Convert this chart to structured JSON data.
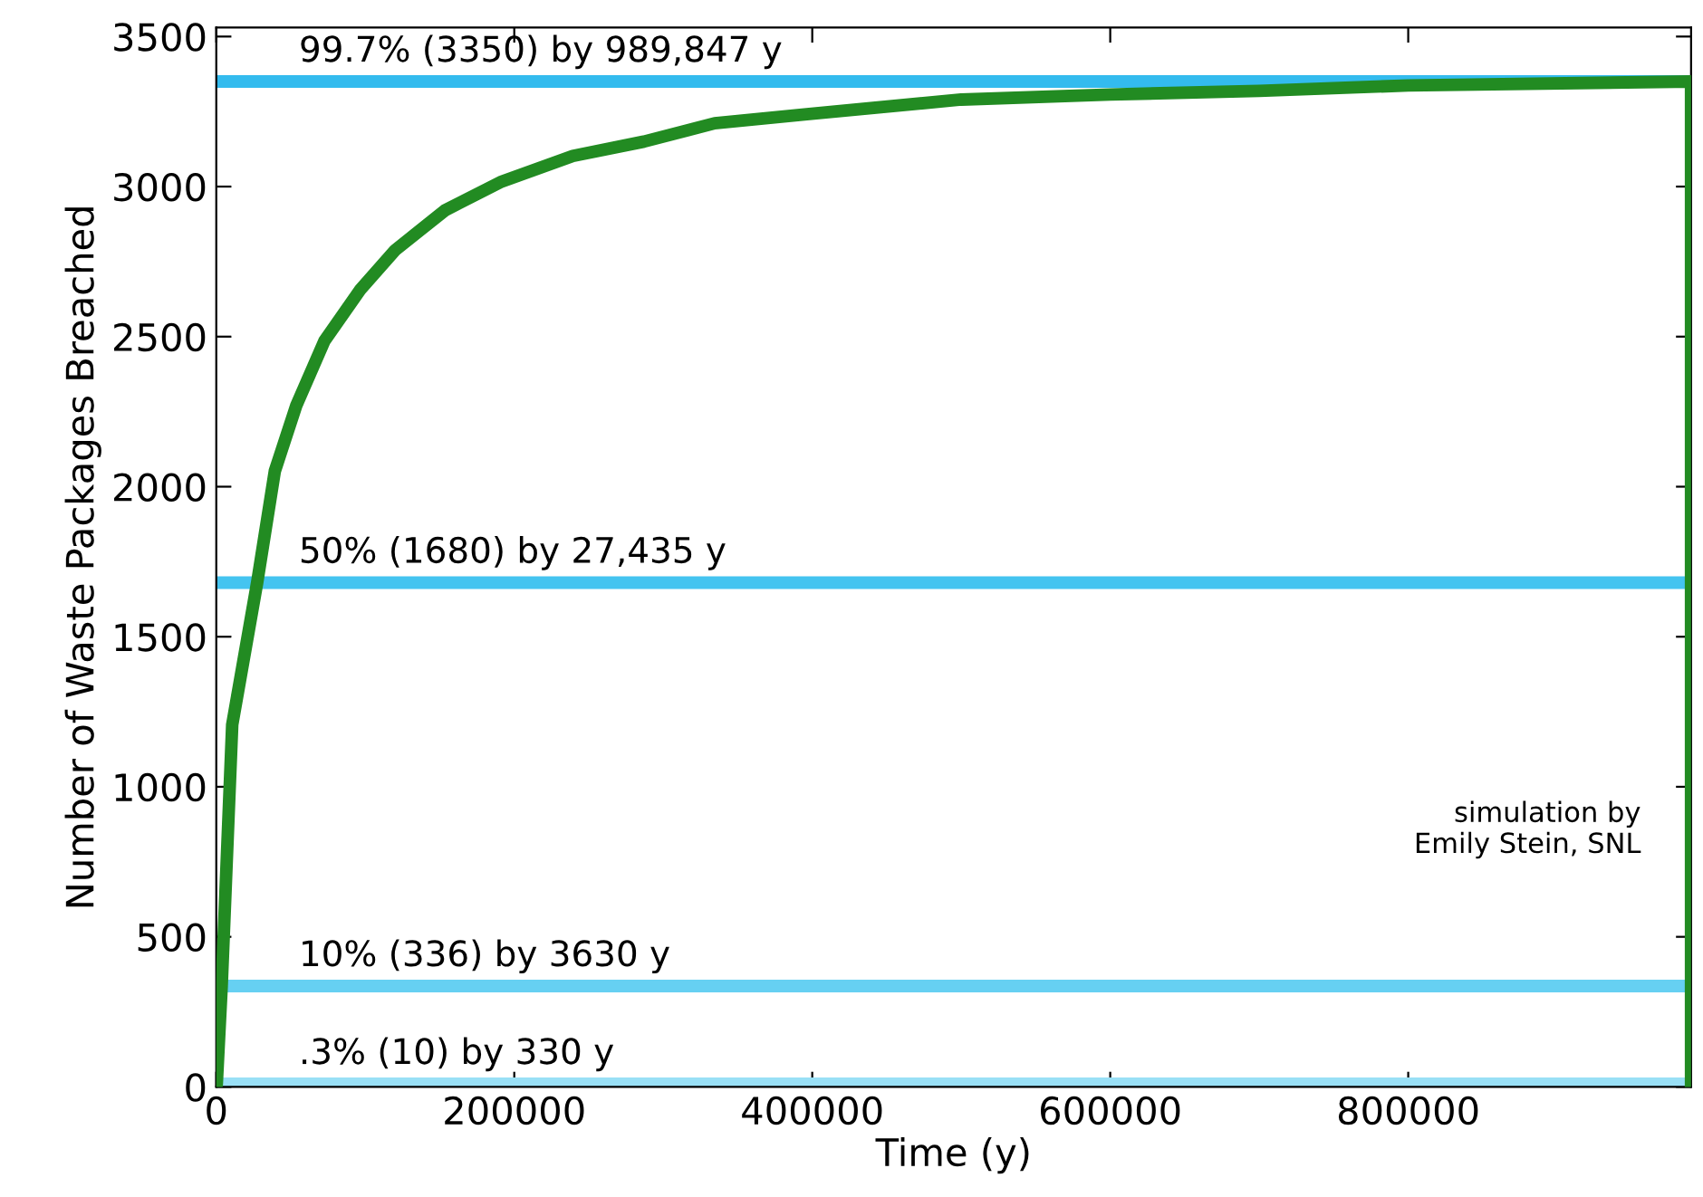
{
  "chart_data": {
    "type": "line",
    "xlabel": "Time (y)",
    "ylabel": "Number of Waste Packages Breached",
    "x": [
      0,
      330,
      3630,
      10700,
      27435,
      39300,
      53600,
      72600,
      96400,
      120000,
      153600,
      191700,
      239300,
      287000,
      334500,
      396400,
      500000,
      600000,
      700000,
      800000,
      989847,
      989847
    ],
    "series": [
      {
        "color": "#228b22",
        "values": [
          0,
          10,
          336,
          1207,
          1680,
          2052,
          2269,
          2486,
          2655,
          2788,
          2921,
          3017,
          3102,
          3150,
          3211,
          3241,
          3290,
          3307,
          3319,
          3337,
          3350,
          0
        ]
      }
    ],
    "xlim": [
      0,
      989847
    ],
    "ylim": [
      0,
      3530
    ],
    "xticks": [
      0,
      200000,
      400000,
      600000,
      800000
    ],
    "yticks": [
      0,
      500,
      1000,
      1500,
      2000,
      2500,
      3000,
      3500
    ],
    "grid": false,
    "legend": false,
    "marker": "none",
    "line_style": "solid",
    "ref_lines": [
      {
        "axis": "y",
        "value": 3350,
        "label": "99.7% (3350) by 989,847 y",
        "color": "#33bbee"
      },
      {
        "axis": "y",
        "value": 1680,
        "label": "50% (1680) by 27,435 y",
        "color": "#44c4f0"
      },
      {
        "axis": "y",
        "value": 336,
        "label": "10% (336) by 3630 y",
        "color": "#66d0f2"
      },
      {
        "axis": "y",
        "value": 10,
        "label": ".3% (10) by 330 y",
        "color": "#99e0f6"
      }
    ],
    "annotations": [
      "simulation by\nEmily Stein, SNL"
    ]
  }
}
